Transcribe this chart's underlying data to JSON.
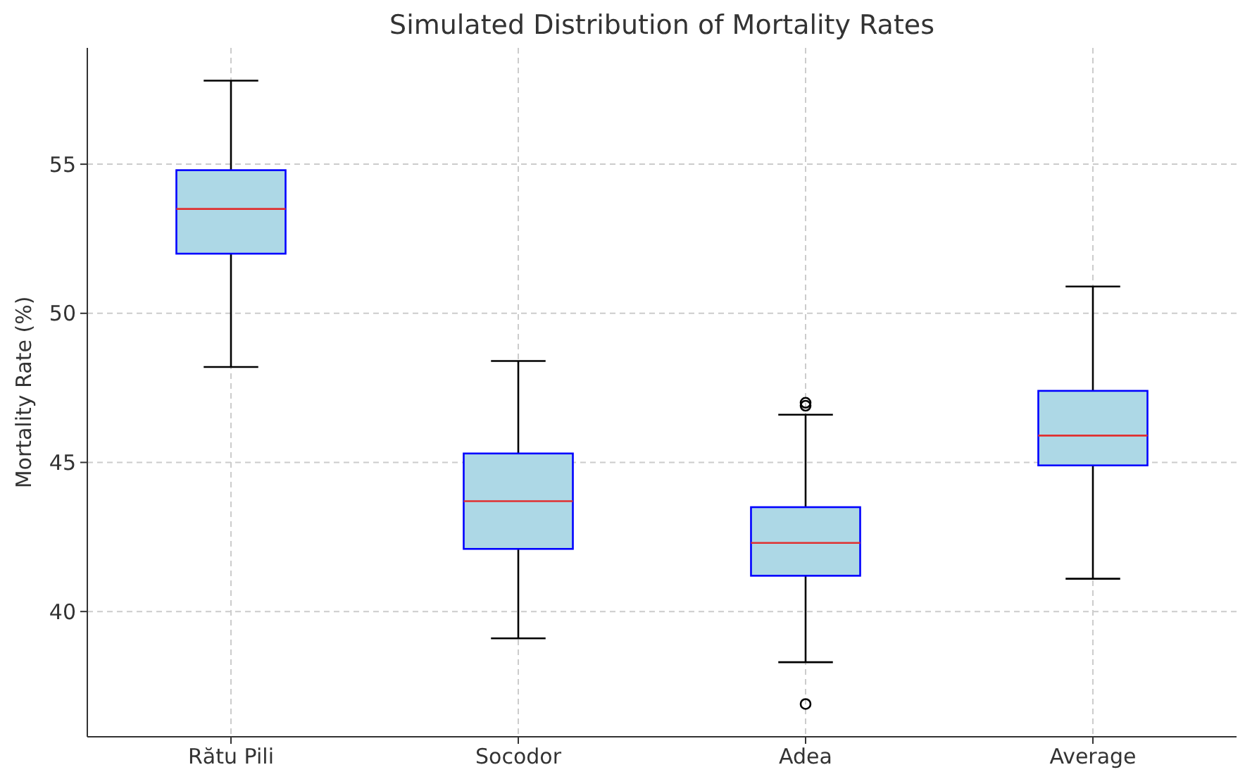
{
  "chart_data": {
    "type": "box",
    "title": "Simulated Distribution of Mortality Rates",
    "ylabel": "Mortality Rate (%)",
    "categories": [
      "Rătu Pili",
      "Socodor",
      "Adea",
      "Average"
    ],
    "boxes": [
      {
        "low": 48.2,
        "q1": 52.0,
        "median": 53.5,
        "q3": 54.8,
        "high": 57.8
      },
      {
        "low": 39.1,
        "q1": 42.1,
        "median": 43.7,
        "q3": 45.3,
        "high": 48.4
      },
      {
        "low": 38.3,
        "q1": 41.2,
        "median": 42.3,
        "q3": 43.5,
        "high": 46.6,
        "outliers": [
          36.9,
          46.9,
          47.0
        ]
      },
      {
        "low": 41.1,
        "q1": 44.9,
        "median": 45.9,
        "q3": 47.4,
        "high": 50.9
      }
    ],
    "color": "#add8e6",
    "ylim": [
      35.8,
      58.9
    ],
    "yticks": [
      40,
      45,
      50,
      55
    ],
    "grid": true
  }
}
